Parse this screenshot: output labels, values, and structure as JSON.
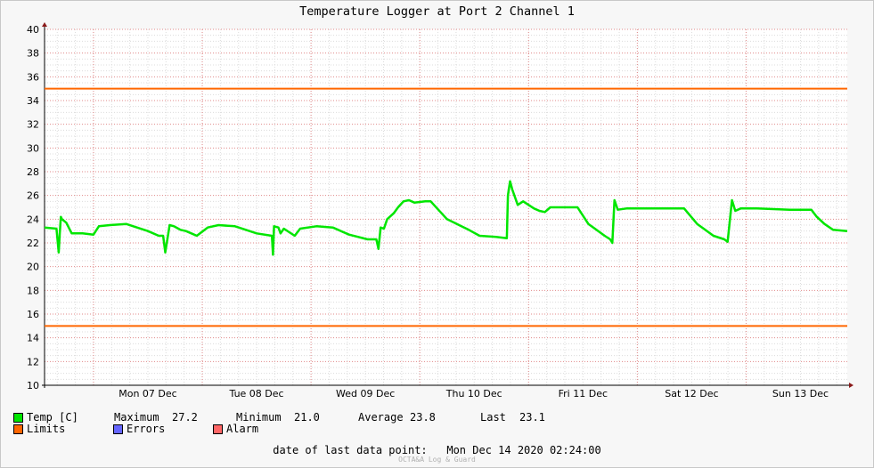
{
  "chart_data": {
    "type": "line",
    "title": "Temperature Logger at Port 2 Channel 1",
    "ylim": [
      10,
      40
    ],
    "yticks": [
      10,
      12,
      14,
      16,
      18,
      20,
      22,
      24,
      26,
      28,
      30,
      32,
      34,
      36,
      38,
      40
    ],
    "x_range_days": [
      6.55,
      13.93
    ],
    "x_ticks": [
      {
        "label": "Mon 07 Dec",
        "day": 7
      },
      {
        "label": "Tue 08 Dec",
        "day": 8
      },
      {
        "label": "Wed 09 Dec",
        "day": 9
      },
      {
        "label": "Thu 10 Dec",
        "day": 10
      },
      {
        "label": "Fri 11 Dec",
        "day": 11
      },
      {
        "label": "Sat 12 Dec",
        "day": 12
      },
      {
        "label": "Sun 13 Dec",
        "day": 13
      }
    ],
    "grid": true,
    "series": [
      {
        "name": "Temp [C]",
        "color": "#00e600",
        "x": [
          6.55,
          6.66,
          6.68,
          6.69,
          6.7,
          6.71,
          6.75,
          6.8,
          6.9,
          7.0,
          7.05,
          7.15,
          7.3,
          7.5,
          7.6,
          7.64,
          7.66,
          7.7,
          7.74,
          7.78,
          7.8,
          7.85,
          7.9,
          7.95,
          8.05,
          8.15,
          8.3,
          8.5,
          8.64,
          8.65,
          8.66,
          8.7,
          8.72,
          8.75,
          8.8,
          8.85,
          8.9,
          9.05,
          9.2,
          9.35,
          9.52,
          9.6,
          9.62,
          9.64,
          9.67,
          9.7,
          9.76,
          9.8,
          9.85,
          9.9,
          9.95,
          10.05,
          10.1,
          10.25,
          10.45,
          10.55,
          10.7,
          10.8,
          10.81,
          10.83,
          10.85,
          10.9,
          10.95,
          11.05,
          11.1,
          11.15,
          11.2,
          11.3,
          11.45,
          11.55,
          11.7,
          11.75,
          11.77,
          11.79,
          11.82,
          11.9,
          12.2,
          12.43,
          12.55,
          12.7,
          12.8,
          12.83,
          12.87,
          12.9,
          12.95,
          13.0,
          13.1,
          13.4,
          13.6,
          13.65,
          13.72,
          13.8,
          13.93
        ],
        "y": [
          23.3,
          23.2,
          21.2,
          22.8,
          24.2,
          24.0,
          23.7,
          22.8,
          22.8,
          22.7,
          23.4,
          23.5,
          23.6,
          23.0,
          22.6,
          22.6,
          21.2,
          23.5,
          23.4,
          23.2,
          23.1,
          23.0,
          22.8,
          22.6,
          23.3,
          23.5,
          23.4,
          22.8,
          22.6,
          21.0,
          23.4,
          23.3,
          22.8,
          23.2,
          22.9,
          22.6,
          23.2,
          23.4,
          23.3,
          22.7,
          22.3,
          22.3,
          21.5,
          23.3,
          23.2,
          24.0,
          24.5,
          25.0,
          25.5,
          25.6,
          25.4,
          25.5,
          25.5,
          24.0,
          23.1,
          22.6,
          22.5,
          22.4,
          26.0,
          27.2,
          26.5,
          25.2,
          25.5,
          24.9,
          24.7,
          24.6,
          25.0,
          25.0,
          25.0,
          23.6,
          22.6,
          22.3,
          22.0,
          25.6,
          24.8,
          24.9,
          24.9,
          24.9,
          23.6,
          22.6,
          22.3,
          22.1,
          25.6,
          24.7,
          24.9,
          24.9,
          24.9,
          24.8,
          24.8,
          24.2,
          23.6,
          23.1,
          23.0
        ]
      }
    ],
    "limits": {
      "upper": 35,
      "lower": 15,
      "color": "#ff6600"
    },
    "legend": {
      "temp_label": "Temp [C]",
      "maximum_label": "Maximum",
      "maximum_value": "27.2",
      "minimum_label": "Minimum",
      "minimum_value": "21.0",
      "average_label": "Average",
      "average_value": "23.8",
      "last_label": "Last",
      "last_value": "23.1",
      "limits_label": "Limits",
      "errors_label": "Errors",
      "alarm_label": "Alarm",
      "colors": {
        "temp": "#00e600",
        "limits": "#ff6600",
        "errors": "#6666ff",
        "alarm": "#ff6666"
      }
    },
    "footer": {
      "prefix": "date of last data point:",
      "value": "Mon Dec 14 2020 02:24:00"
    },
    "brand": "OCTA&A Log & Guard"
  }
}
